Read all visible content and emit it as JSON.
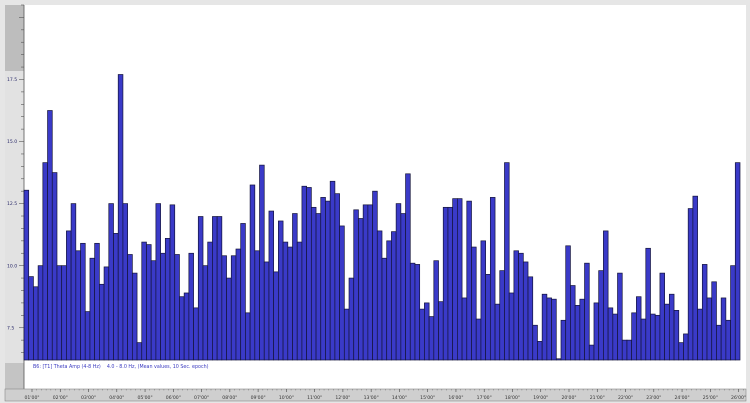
{
  "chart_data": {
    "type": "bar",
    "caption": "B6: [T1] Theta Amp (4-8 Hz)    4.0 - 8.0 Hz, (Mean values, 10 Sec. epoch)",
    "xlabel": "",
    "ylabel": "",
    "ylim": [
      6.2,
      20.5
    ],
    "y_ticks": [
      "7.5",
      "10.0",
      "12.5",
      "15.0",
      "17.5"
    ],
    "x_ticks": [
      "01'00\"",
      "02'00\"",
      "03'00\"",
      "04'00\"",
      "05'00\"",
      "06'00\"",
      "07'00\"",
      "08'00\"",
      "09'00\"",
      "10'00\"",
      "11'00\"",
      "12'00\"",
      "13'00\"",
      "14'00\"",
      "15'00\"",
      "16'00\"",
      "17'00\"",
      "18'00\"",
      "19'00\"",
      "20'00\"",
      "21'00\"",
      "22'00\"",
      "23'00\"",
      "24'00\"",
      "25'00\"",
      "26'00\""
    ],
    "grid": false,
    "bar_color": "#3a3ac8",
    "bar_edge_color": "#14143a",
    "values": [
      13.04,
      9.56,
      9.15,
      10.0,
      14.15,
      16.25,
      13.75,
      10.0,
      10.0,
      11.4,
      12.5,
      10.6,
      10.9,
      8.15,
      10.3,
      10.9,
      9.25,
      9.95,
      12.5,
      11.3,
      17.7,
      12.5,
      10.45,
      9.7,
      6.9,
      10.95,
      10.85,
      10.2,
      12.5,
      10.5,
      11.1,
      12.45,
      10.45,
      8.75,
      8.9,
      10.5,
      8.3,
      11.98,
      10.0,
      10.95,
      11.98,
      11.98,
      10.4,
      9.5,
      10.4,
      10.67,
      11.7,
      8.1,
      13.25,
      10.6,
      14.05,
      10.15,
      12.2,
      9.75,
      11.8,
      10.95,
      10.75,
      12.1,
      10.95,
      13.2,
      13.15,
      12.35,
      12.1,
      12.75,
      12.6,
      13.4,
      12.9,
      11.6,
      8.25,
      9.5,
      12.25,
      11.9,
      12.45,
      12.45,
      13.0,
      11.4,
      10.3,
      11.0,
      11.37,
      12.5,
      12.1,
      13.7,
      10.1,
      10.05,
      8.25,
      8.5,
      7.95,
      10.2,
      8.55,
      12.35,
      12.35,
      12.7,
      12.7,
      8.7,
      12.6,
      10.75,
      7.85,
      11.0,
      9.65,
      12.75,
      8.45,
      9.8,
      14.15,
      8.9,
      10.6,
      10.5,
      10.15,
      9.55,
      7.6,
      6.95,
      8.85,
      8.7,
      8.65,
      6.25,
      7.8,
      10.8,
      9.2,
      8.4,
      8.65,
      10.1,
      6.8,
      8.5,
      9.8,
      11.4,
      8.3,
      8.05,
      9.7,
      7.0,
      7.0,
      8.1,
      8.75,
      7.85,
      10.7,
      8.05,
      8.0,
      9.7,
      8.45,
      8.85,
      8.2,
      6.9,
      7.25,
      12.3,
      12.8,
      8.25,
      10.05,
      8.7,
      9.35,
      7.6,
      8.7,
      7.8,
      10.0,
      14.15
    ]
  }
}
